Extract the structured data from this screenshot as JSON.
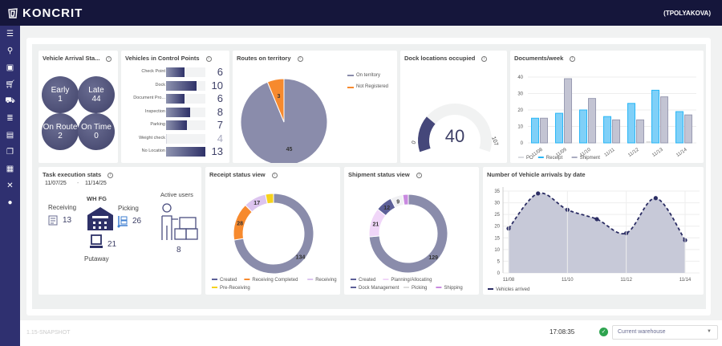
{
  "app": {
    "brand": "KONCRIT",
    "user": "(TPOLYAKOVA)",
    "version": "1.15-SNAPSHOT",
    "time": "17:08:35",
    "warehouse_placeholder": "Current warehouse"
  },
  "sidebar": {
    "items": [
      {
        "icon": "menu-icon"
      },
      {
        "icon": "search-icon"
      },
      {
        "icon": "contact-icon"
      },
      {
        "icon": "cart-icon"
      },
      {
        "icon": "truck-icon"
      },
      {
        "icon": "list-icon"
      },
      {
        "icon": "archive-icon"
      },
      {
        "icon": "documents-icon"
      },
      {
        "icon": "report-icon"
      },
      {
        "icon": "tools-icon"
      },
      {
        "icon": "settings-globe-icon"
      }
    ]
  },
  "arrival": {
    "title": "Vehicle Arrival Sta...",
    "items": [
      {
        "label": "Early",
        "value": "1"
      },
      {
        "label": "Late",
        "value": "44"
      },
      {
        "label": "On Route",
        "value": "2"
      },
      {
        "label": "On Time",
        "value": "0"
      }
    ]
  },
  "control_points": {
    "title": "Vehicles in Control Points",
    "max": 13,
    "rows": [
      {
        "label": "Check Point",
        "value": 6
      },
      {
        "label": "Dock",
        "value": 10
      },
      {
        "label": "Document Pro...",
        "value": 6
      },
      {
        "label": "Inspection",
        "value": 8
      },
      {
        "label": "Parking",
        "value": 7
      },
      {
        "label": "Weight check",
        "value": 4
      },
      {
        "label": "No Location",
        "value": 13
      }
    ]
  },
  "routes": {
    "title": "Routes on territory",
    "legend": [
      "On territory",
      "Not Registered"
    ],
    "colors": [
      "#8a8cab",
      "#f78a2e"
    ]
  },
  "dock": {
    "title": "Dock locations occupied",
    "value": 40,
    "min": "0",
    "max": "107",
    "color": "#45477a"
  },
  "documents": {
    "title": "Documents/week"
  },
  "tasks": {
    "title": "Task execution stats",
    "date_from": "11/07/25",
    "date_sep": "-",
    "date_to": "11/14/25",
    "wh": "WH FG",
    "receiving_label": "Receiving",
    "receiving": "13",
    "picking_label": "Picking",
    "picking": "26",
    "putaway_label": "Putaway",
    "putaway": "21",
    "active_label": "Active users",
    "active": "8"
  },
  "receipt": {
    "title": "Receipt status view"
  },
  "shipment": {
    "title": "Shipment status view"
  },
  "arrivals": {
    "title": "Number of Vehicle arrivals by date"
  },
  "chart_data": [
    {
      "id": "routes",
      "type": "pie",
      "labels": [
        "On territory",
        "Not Registered"
      ],
      "values": [
        45,
        3
      ],
      "colors": [
        "#8a8cab",
        "#f78a2e"
      ]
    },
    {
      "id": "documents",
      "type": "bar",
      "categories": [
        "11/08",
        "11/09",
        "11/10",
        "11/11",
        "11/12",
        "11/13",
        "11/14"
      ],
      "ylim": [
        0,
        40
      ],
      "yticks": [
        "0",
        "10",
        "20",
        "30",
        "40"
      ],
      "grid": true,
      "legend": "bottom-left",
      "series": [
        {
          "name": "PO",
          "color": "#d9dbe0",
          "values": [
            0,
            0,
            0,
            0,
            0,
            1,
            0
          ]
        },
        {
          "name": "Receipt",
          "color": "#29b6f6",
          "values": [
            15,
            18,
            20,
            16,
            24,
            32,
            19
          ]
        },
        {
          "name": "Shipment",
          "color": "#a9abc0",
          "values": [
            15,
            39,
            27,
            14,
            14,
            28,
            17
          ]
        }
      ]
    },
    {
      "id": "receipt",
      "type": "pie",
      "donut": true,
      "labels": [
        "Created",
        "Receiving Completed",
        "Receiving",
        "Pre-Receiving"
      ],
      "values": [
        134,
        28,
        17,
        6
      ],
      "colors": [
        "#8a8cab",
        "#f78a2e",
        "#dcc4ef",
        "#f6d21c"
      ],
      "legend": "bottom"
    },
    {
      "id": "shipment",
      "type": "pie",
      "donut": true,
      "labels": [
        "Created",
        "Planning/Allocating",
        "Dock Management",
        "Picking",
        "Shipping"
      ],
      "values": [
        129,
        21,
        12,
        9,
        4
      ],
      "order": [
        0,
        1,
        2,
        3,
        4
      ],
      "colors": [
        "#8a8cab",
        "#f0d6f8",
        "#5d6098",
        "#f0f0f3",
        "#c98ae0"
      ],
      "legend": "bottom"
    },
    {
      "id": "arrivals",
      "type": "area",
      "x": [
        "11/08",
        "11/09",
        "11/10",
        "11/11",
        "11/12",
        "11/13",
        "11/14"
      ],
      "xticks": [
        "11/08",
        "11/10",
        "11/12",
        "11/14"
      ],
      "ylim": [
        0,
        35
      ],
      "yticks": [
        "0",
        "5",
        "10",
        "15",
        "20",
        "25",
        "30",
        "35"
      ],
      "grid": true,
      "legend": "bottom-left",
      "series": [
        {
          "name": "Vehicles arrived",
          "color": "#2a2c63",
          "fill": "#c7c9d8",
          "values": [
            19,
            34,
            27,
            23,
            17,
            32,
            14
          ]
        }
      ]
    }
  ]
}
